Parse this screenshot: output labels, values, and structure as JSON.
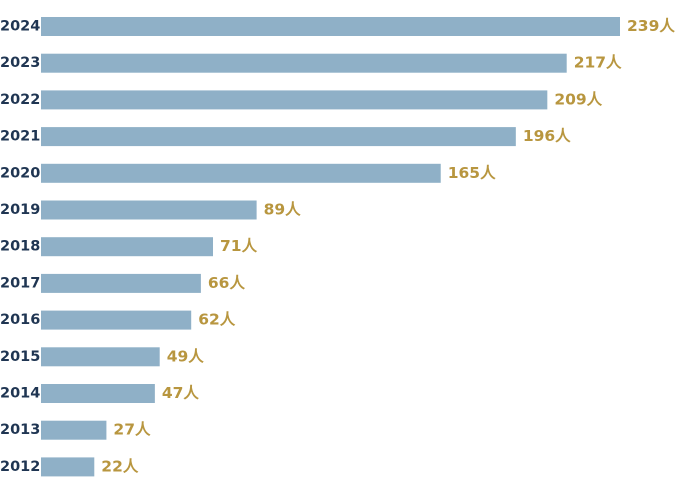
{
  "chart_data": {
    "type": "bar",
    "orientation": "horizontal",
    "categories": [
      "2024",
      "2023",
      "2022",
      "2021",
      "2020",
      "2019",
      "2018",
      "2017",
      "2016",
      "2015",
      "2014",
      "2013",
      "2012"
    ],
    "values": [
      239,
      217,
      209,
      196,
      165,
      89,
      71,
      66,
      62,
      49,
      47,
      27,
      22
    ],
    "value_labels": [
      "239人",
      "217人",
      "209人",
      "196人",
      "165人",
      "89人",
      "71人",
      "66人",
      "62人",
      "49人",
      "47人",
      "27人",
      "22人"
    ],
    "title": "",
    "xlabel": "",
    "ylabel": "",
    "grid": false,
    "legend": "none"
  },
  "colors": {
    "bar": "#8fb0c7",
    "year_label": "#1f3552",
    "value_label": "#b8963f"
  }
}
